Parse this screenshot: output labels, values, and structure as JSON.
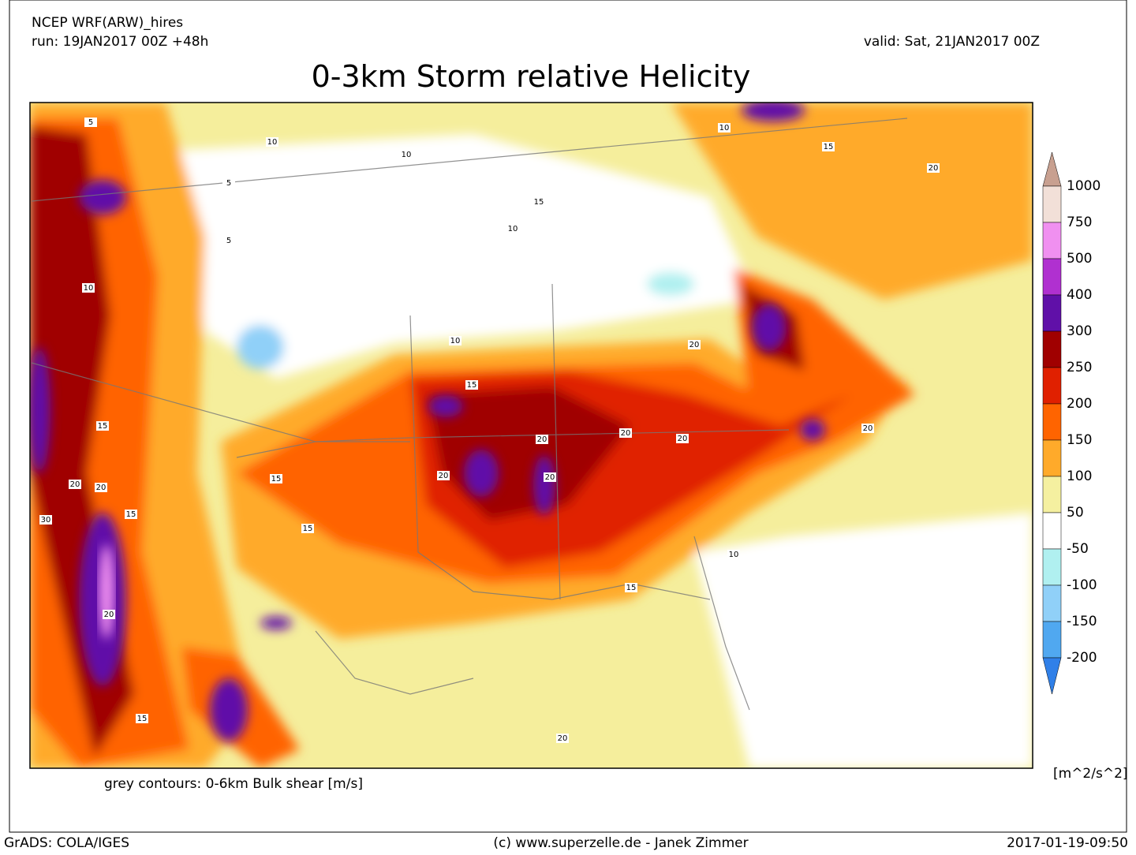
{
  "header": {
    "model": "NCEP WRF(ARW)_hires",
    "run": "run: 19JAN2017 00Z +48h",
    "valid": "valid: Sat, 21JAN2017 00Z",
    "title": "0-3km Storm relative Helicity"
  },
  "map": {
    "contour_note": "grey contours: 0-6km Bulk shear [m/s]",
    "contour_labels": [
      "5",
      "10",
      "5",
      "10",
      "15",
      "10",
      "15",
      "20",
      "10",
      "10",
      "15",
      "15",
      "20",
      "20",
      "20",
      "20",
      "20",
      "15",
      "20",
      "20",
      "15",
      "10",
      "20",
      "20",
      "30",
      "20",
      "15",
      "10",
      "5",
      "15",
      "15",
      "20"
    ]
  },
  "colorbar": {
    "labels": [
      "1000",
      "750",
      "500",
      "400",
      "300",
      "250",
      "200",
      "150",
      "100",
      "50",
      "-50",
      "-100",
      "-150",
      "-200"
    ],
    "colors": [
      "#c8a090",
      "#f2e0d8",
      "#f090f0",
      "#b030d0",
      "#6010a8",
      "#a00000",
      "#e02000",
      "#ff6400",
      "#ffaa2a",
      "#f5f0a0",
      "#ffffff",
      "#b0f0f0",
      "#90d0f8",
      "#50a8f0",
      "#3080e8"
    ],
    "unit": "[m^2/s^2]"
  },
  "footer": {
    "left": "GrADS: COLA/IGES",
    "center": "(c) www.superzelle.de - Janek Zimmer",
    "right": "2017-01-19-09:50"
  }
}
